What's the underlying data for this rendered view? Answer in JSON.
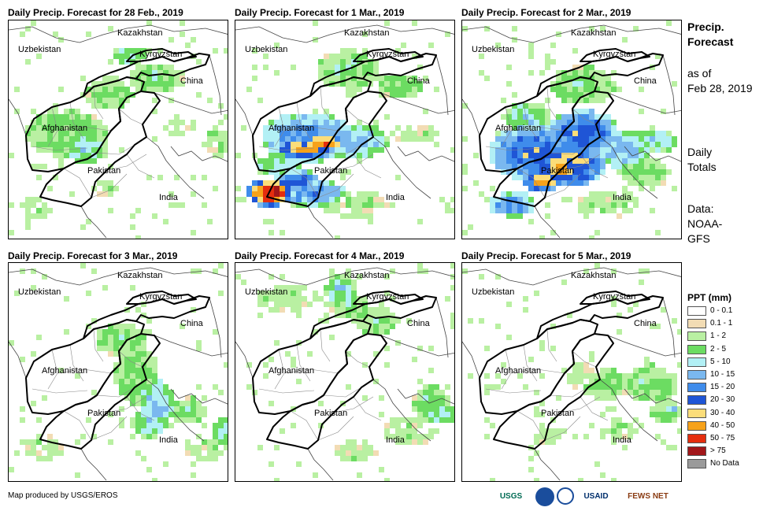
{
  "panels": [
    {
      "title": "Daily Precip. Forecast for 28 Feb., 2019"
    },
    {
      "title": "Daily Precip. Forecast for 1 Mar., 2019"
    },
    {
      "title": "Daily Precip. Forecast for 2 Mar., 2019"
    },
    {
      "title": "Daily Precip. Forecast for 3 Mar., 2019"
    },
    {
      "title": "Daily Precip. Forecast for 4 Mar., 2019"
    },
    {
      "title": "Daily Precip. Forecast for 5 Mar., 2019"
    }
  ],
  "places": {
    "kazakhstan": "Kazakhstan",
    "uzbekistan": "Uzbekistan",
    "kyrgyzstan": "Kyrgyzstan",
    "china": "China",
    "afghanistan": "Afghanistan",
    "pakistan": "Pakistan",
    "india": "India"
  },
  "sidebar": {
    "title_line1": "Precip.",
    "title_line2": "Forecast",
    "asof_line1": "as of",
    "asof_line2": "Feb 28, 2019",
    "daily_line1": "Daily",
    "daily_line2": "Totals",
    "data_line1": "Data:",
    "data_line2": "NOAA-",
    "data_line3": "GFS"
  },
  "legend": {
    "title": "PPT (mm)",
    "items": [
      {
        "label": "0 - 0.1",
        "color": "#ffffff"
      },
      {
        "label": "0.1 - 1",
        "color": "#f2dcb4"
      },
      {
        "label": "1 - 2",
        "color": "#b9f0a2"
      },
      {
        "label": "2 - 5",
        "color": "#6cdc62"
      },
      {
        "label": "5 - 10",
        "color": "#b2f0f5"
      },
      {
        "label": "10 - 15",
        "color": "#7ab8ef"
      },
      {
        "label": "15 - 20",
        "color": "#3f8ceb"
      },
      {
        "label": "20 - 30",
        "color": "#1f55d6"
      },
      {
        "label": "30 - 40",
        "color": "#fbdd7a"
      },
      {
        "label": "40 - 50",
        "color": "#f7a21a"
      },
      {
        "label": "50 - 75",
        "color": "#e52e0e"
      },
      {
        "label": "> 75",
        "color": "#a2171a"
      },
      {
        "label": "No Data",
        "color": "#9a9a9a"
      }
    ]
  },
  "footer": {
    "credit": "Map produced by USGS/EROS",
    "logos": [
      "USGS",
      "NOAA",
      "USAID",
      "FEWS NET"
    ]
  }
}
